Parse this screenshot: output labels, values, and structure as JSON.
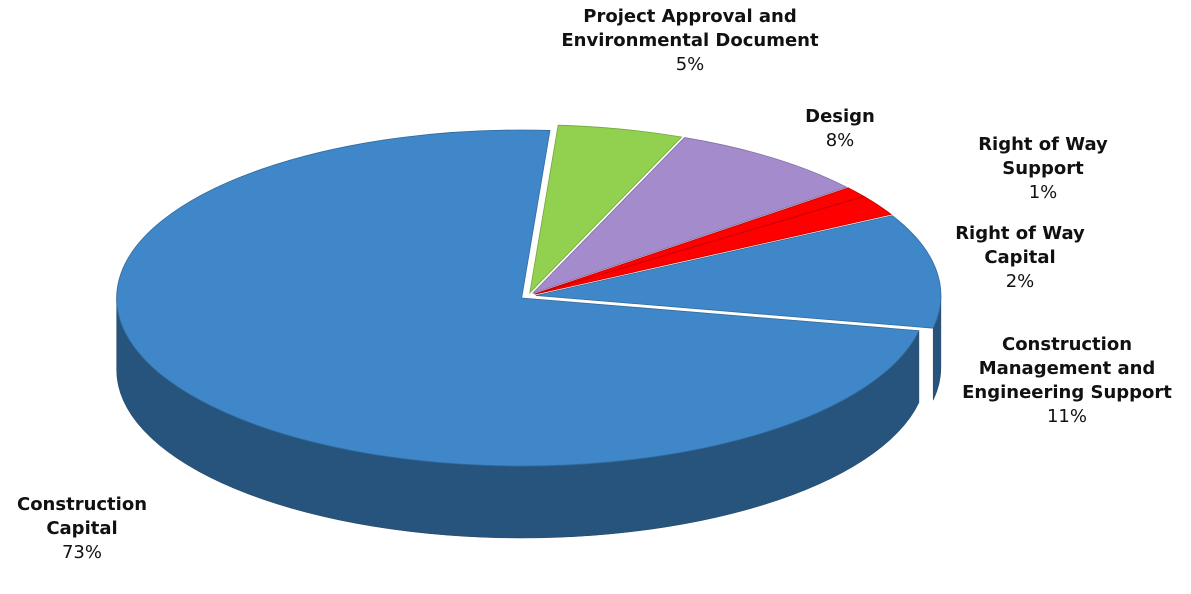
{
  "chart_data": {
    "type": "pie",
    "categories": [
      "Project Approval and Environmental Document",
      "Design",
      "Right of Way Support",
      "Right of Way Capital",
      "Construction Management and Engineering Support",
      "Construction Capital"
    ],
    "values": [
      5,
      8,
      1,
      2,
      11,
      73
    ],
    "value_labels": [
      "5%",
      "8%",
      "1%",
      "2%",
      "11%",
      "73%"
    ],
    "colors": [
      "#92d050",
      "#a48ccc",
      "#ff0000",
      "#ff0000",
      "#3f87c8",
      "#3f87c8"
    ]
  }
}
